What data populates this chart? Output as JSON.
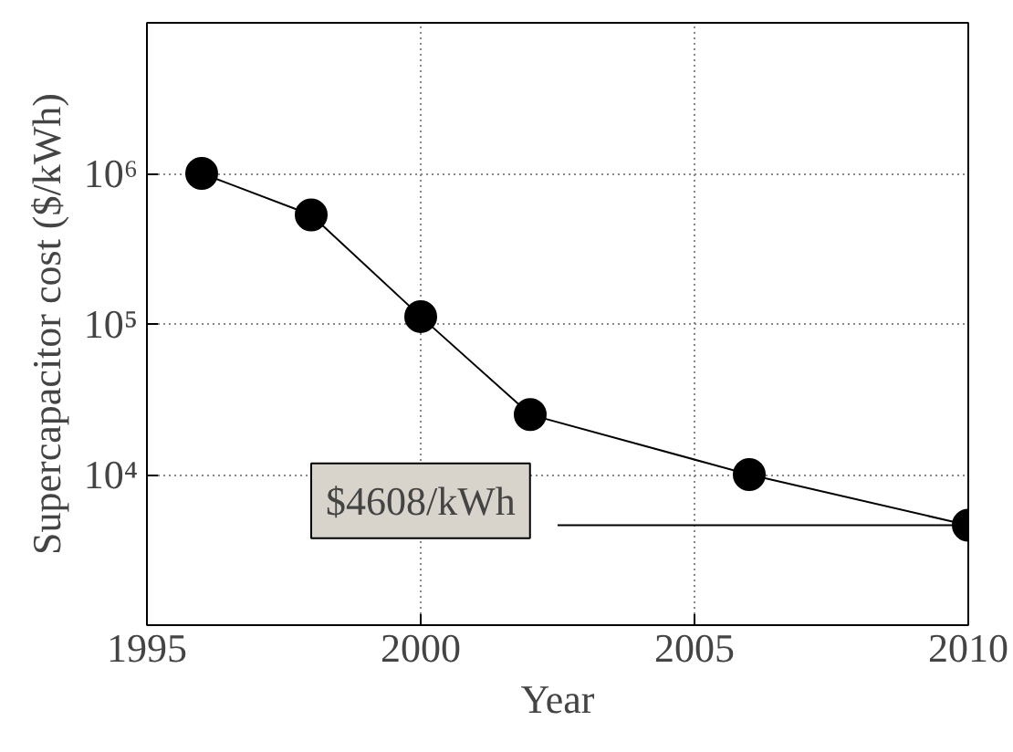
{
  "chart_data": {
    "type": "line",
    "xlabel": "Year",
    "ylabel": "Supercapacitor cost ($/kWh)",
    "x": [
      1996,
      1998,
      2000,
      2002,
      2006,
      2010
    ],
    "series": [
      {
        "color": "#000000",
        "values": [
          1000000,
          530000,
          112000,
          25000,
          10000,
          4608
        ]
      }
    ],
    "xlim": [
      1995,
      2010
    ],
    "xticks": [
      1995,
      2000,
      2005,
      2010
    ],
    "ylim": [
      1000,
      10000000
    ],
    "yticks": [
      {
        "value": 10000,
        "label": "10⁴"
      },
      {
        "value": 100000,
        "label": "10⁵"
      },
      {
        "value": 1000000,
        "label": "10⁶"
      }
    ],
    "log": "y",
    "grid": true,
    "marker": "circle",
    "line_style": "solid",
    "annotations": [
      "$4608/kWh"
    ]
  }
}
